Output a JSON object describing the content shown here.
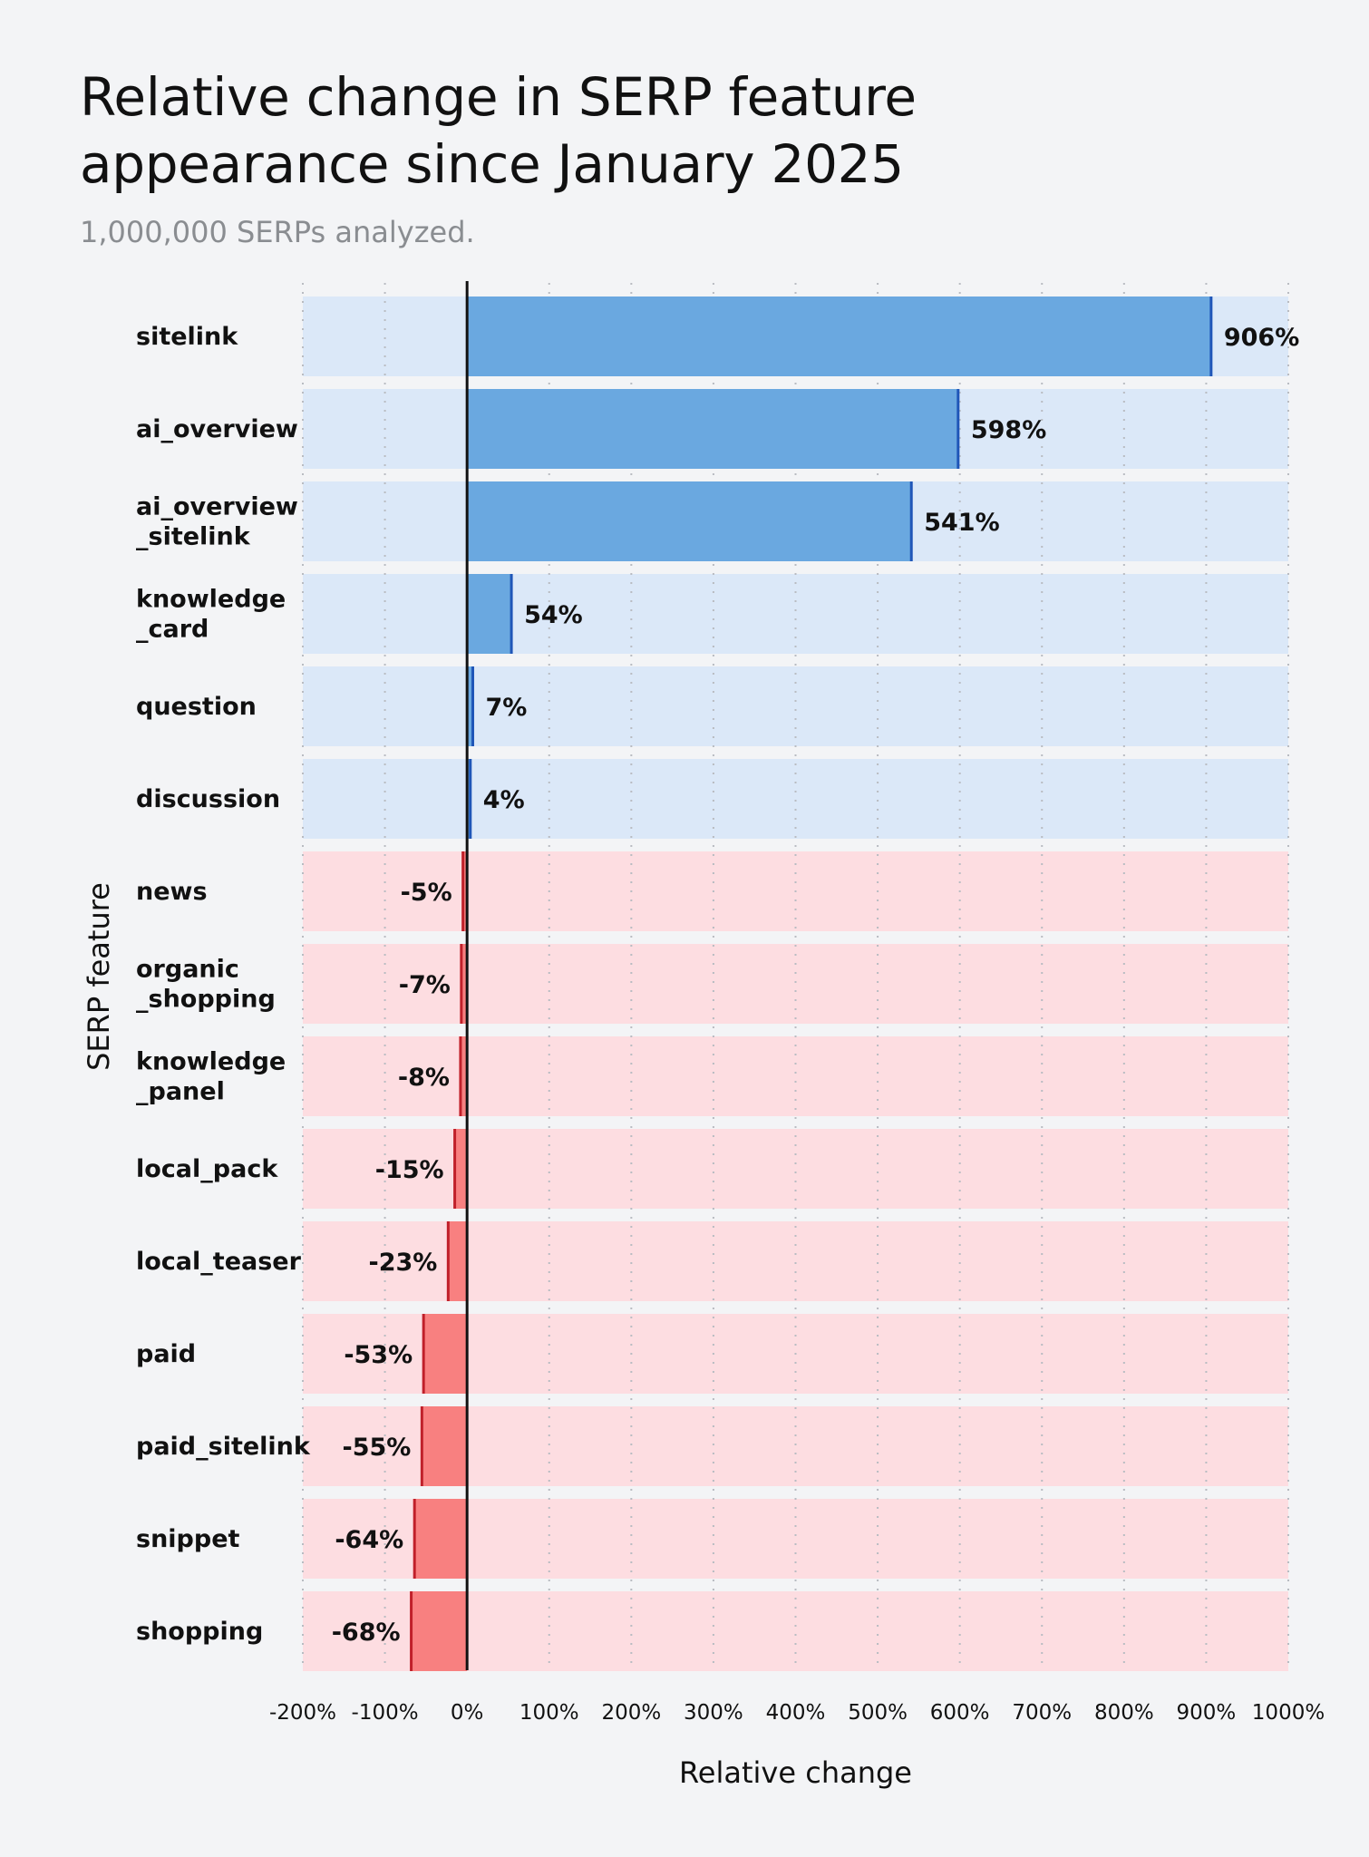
{
  "title": "Relative change in SERP feature appearance since January 2025",
  "subtitle": "1,000,000 SERPs analyzed.",
  "colors": {
    "positive_bar": "#6aa8e0",
    "positive_edge": "#1f56b8",
    "positive_band": "#dbe8f8",
    "negative_bar": "#f88080",
    "negative_edge": "#c0202a",
    "negative_band": "#fddde1",
    "background": "#f3f4f6"
  },
  "chart_data": {
    "type": "bar",
    "orientation": "horizontal",
    "title": "Relative change in SERP feature appearance since January 2025",
    "subtitle": "1,000,000 SERPs analyzed.",
    "xlabel": "Relative change",
    "ylabel": "SERP feature",
    "xlim": [
      -200,
      1000
    ],
    "x_ticks": [
      -200,
      -100,
      0,
      100,
      200,
      300,
      400,
      500,
      600,
      700,
      800,
      900,
      1000
    ],
    "x_tick_labels": [
      "-200%",
      "-100%",
      "0%",
      "100%",
      "200%",
      "300%",
      "400%",
      "500%",
      "600%",
      "700%",
      "800%",
      "900%",
      "1000%"
    ],
    "grid": "vertical, dotted",
    "legend": "none",
    "categories": [
      [
        "sitelink"
      ],
      [
        "ai_overview"
      ],
      [
        "ai_overview",
        "_sitelink"
      ],
      [
        "knowledge",
        "_card"
      ],
      [
        "question"
      ],
      [
        "discussion"
      ],
      [
        "news"
      ],
      [
        "organic",
        "_shopping"
      ],
      [
        "knowledge",
        "_panel"
      ],
      [
        "local_pack"
      ],
      [
        "local_teaser"
      ],
      [
        "paid"
      ],
      [
        "paid_sitelink"
      ],
      [
        "snippet"
      ],
      [
        "shopping"
      ]
    ],
    "values": [
      906,
      598,
      541,
      54,
      7,
      4,
      -5,
      -7,
      -8,
      -15,
      -23,
      -53,
      -55,
      -64,
      -68
    ],
    "value_labels": [
      "906%",
      "598%",
      "541%",
      "54%",
      "7%",
      "4%",
      "-5%",
      "-7%",
      "-8%",
      "-15%",
      "-23%",
      "-53%",
      "-55%",
      "-64%",
      "-68%"
    ]
  }
}
